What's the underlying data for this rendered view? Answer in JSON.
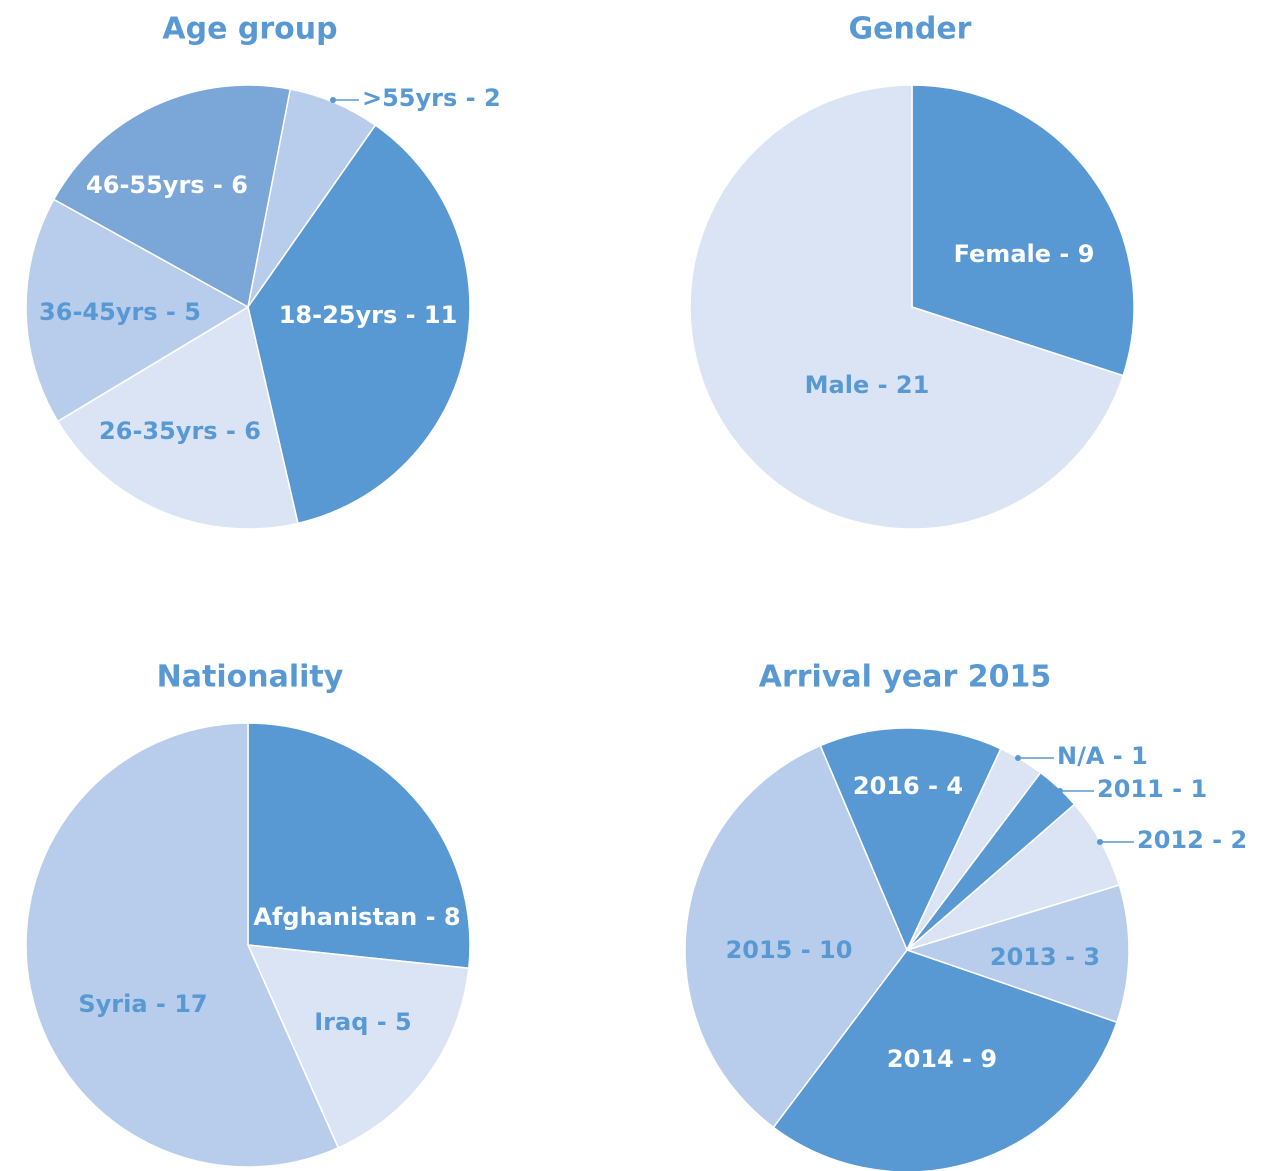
{
  "chart_data": [
    {
      "type": "pie",
      "title": "Age group",
      "startangle": 35,
      "values": [
        11,
        6,
        5,
        6,
        2
      ],
      "value_labels": [
        "18-25yrs - 11",
        "26-35yrs - 6",
        "36-45yrs - 5",
        "46-55yrs - 6",
        ">55yrs - 2"
      ],
      "colors": [
        "#5899d4",
        "#dbe4f4",
        "#b8cdec",
        "#7aa6d8",
        "#b8cdec"
      ]
    },
    {
      "type": "pie",
      "title": "Gender",
      "startangle": 0,
      "values": [
        9,
        21
      ],
      "value_labels": [
        "Female - 9",
        "Male - 21"
      ],
      "colors": [
        "#5899d4",
        "#dbe4f4"
      ]
    },
    {
      "type": "pie",
      "title": "Nationality",
      "startangle": 0,
      "values": [
        8,
        5,
        17
      ],
      "value_labels": [
        "Afghanistan - 8",
        "Iraq - 5",
        "Syria - 17"
      ],
      "colors": [
        "#5899d4",
        "#dbe4f4",
        "#b8cdec"
      ]
    },
    {
      "type": "pie",
      "title": "Arrival year 2015",
      "startangle": -23,
      "values": [
        4,
        1,
        1,
        2,
        3,
        9,
        10
      ],
      "value_labels": [
        "2016 - 4",
        "N/A - 1",
        "2011 - 1",
        "2012 - 2",
        "2013 - 3",
        "2014 - 9",
        "2015 - 10"
      ],
      "colors": [
        "#5899d4",
        "#dbe4f4",
        "#5899d4",
        "#dbe4f4",
        "#b8cdec",
        "#5899d4",
        "#b8cdec"
      ]
    }
  ]
}
